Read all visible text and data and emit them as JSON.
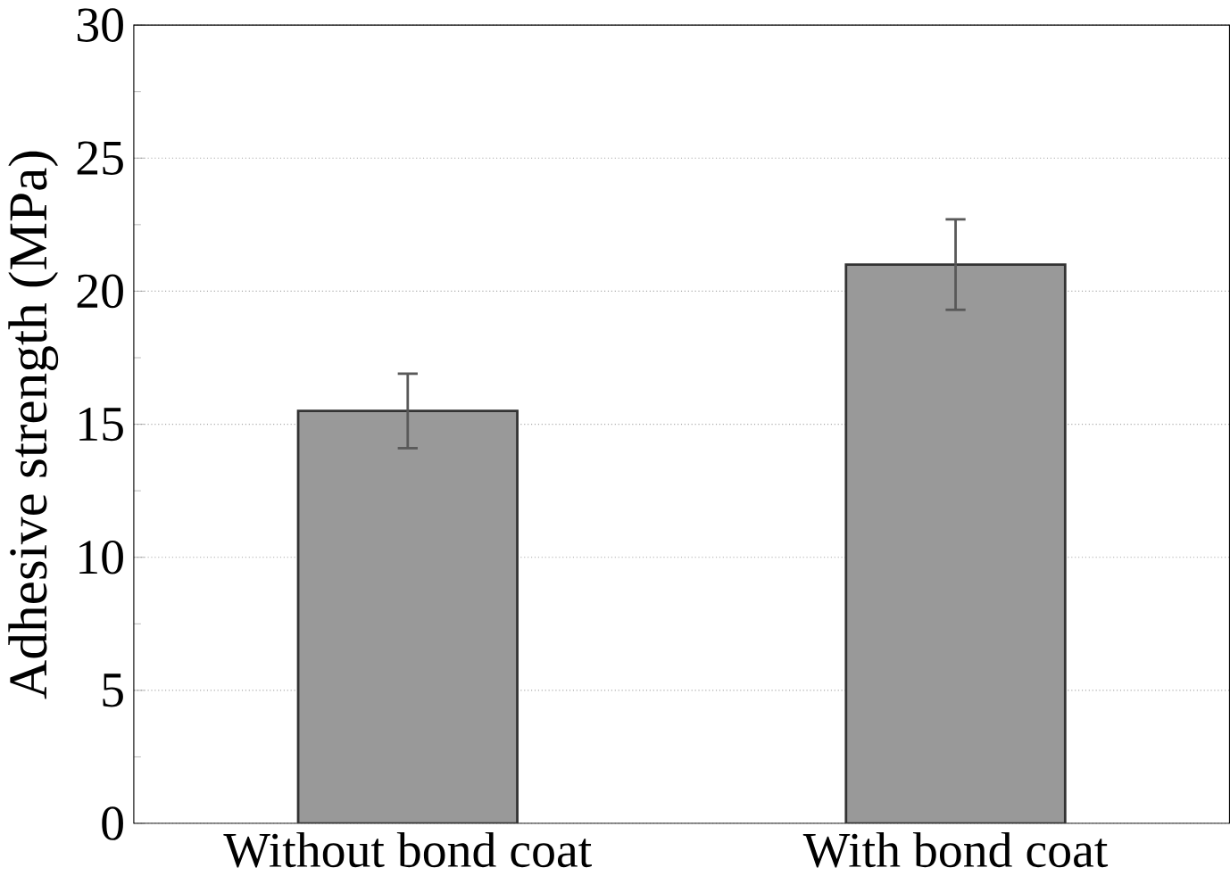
{
  "chart_data": {
    "type": "bar",
    "ylabel": "Adhesive strength (MPa)",
    "categories": [
      "Without bond coat",
      "With bond coat"
    ],
    "values": [
      15.5,
      21.0
    ],
    "errors": [
      1.4,
      1.7
    ],
    "color": "#999999",
    "ylim": [
      0,
      30
    ],
    "yticks": [
      0,
      5,
      10,
      15,
      20,
      25,
      30
    ],
    "grid": "y"
  }
}
